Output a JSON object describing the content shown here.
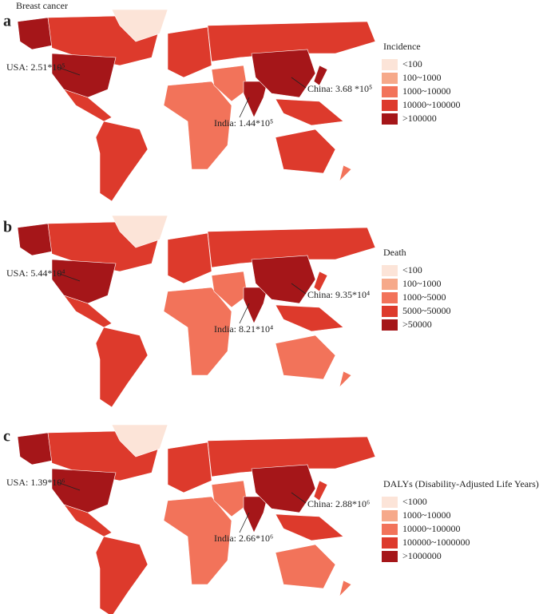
{
  "header": {
    "title": "Breast cancer"
  },
  "panels": [
    {
      "label": "a",
      "annotations": [
        "USA: 2.51*10⁵",
        "China: 3.68 *10⁵",
        "India: 1.44*10⁵"
      ],
      "legend": {
        "title": "Incidence",
        "items": [
          "<100",
          "100~1000",
          "1000~10000",
          "10000~100000",
          ">100000"
        ]
      }
    },
    {
      "label": "b",
      "annotations": [
        "USA: 5.44*10⁴",
        "China: 9.35*10⁴",
        "India: 8.21*10⁴"
      ],
      "legend": {
        "title": "Death",
        "items": [
          "<100",
          "100~1000",
          "1000~5000",
          "5000~50000",
          ">50000"
        ]
      }
    },
    {
      "label": "c",
      "annotations": [
        "USA: 1.39*10⁶",
        "China: 2.88*10⁶",
        "India: 2.66*10⁶"
      ],
      "legend": {
        "title": "DALYs (Disability-Adjusted Life Years)",
        "items": [
          "<1000",
          "1000~10000",
          "10000~100000",
          "100000~1000000",
          ">1000000"
        ]
      }
    }
  ]
}
